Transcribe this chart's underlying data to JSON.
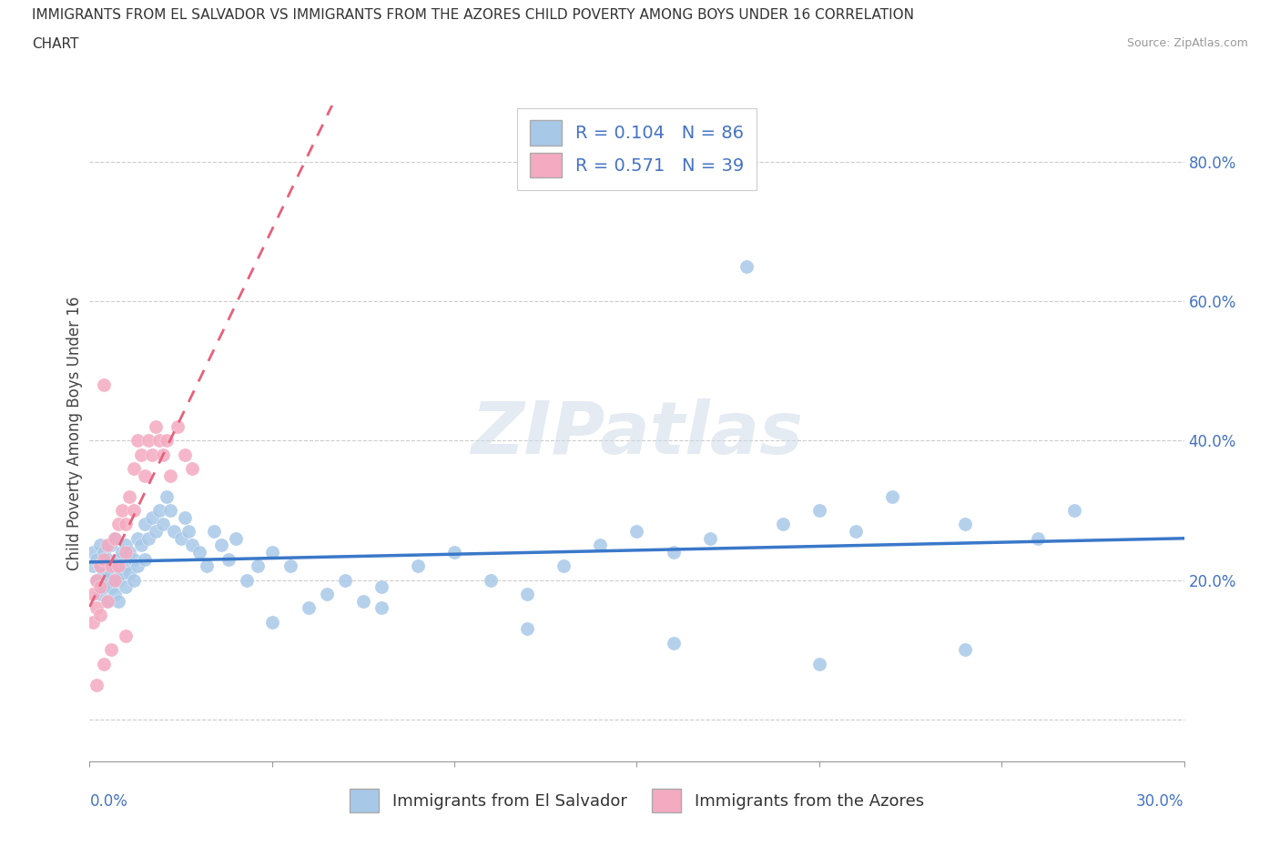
{
  "title_line1": "IMMIGRANTS FROM EL SALVADOR VS IMMIGRANTS FROM THE AZORES CHILD POVERTY AMONG BOYS UNDER 16 CORRELATION",
  "title_line2": "CHART",
  "source": "Source: ZipAtlas.com",
  "ylabel": "Child Poverty Among Boys Under 16",
  "y_ticks": [
    0.0,
    0.2,
    0.4,
    0.6,
    0.8
  ],
  "y_tick_labels": [
    "",
    "20.0%",
    "40.0%",
    "60.0%",
    "80.0%"
  ],
  "xlim": [
    0.0,
    0.3
  ],
  "ylim": [
    -0.06,
    0.88
  ],
  "watermark_text": "ZIPatlas",
  "legend_label_1": "R = 0.104   N = 86",
  "legend_label_2": "R = 0.571   N = 39",
  "legend_label_scatter_1": "Immigrants from El Salvador",
  "legend_label_scatter_2": "Immigrants from the Azores",
  "color_salvador": "#a8c8e8",
  "color_azores": "#f4aac0",
  "color_trend_salvador": "#3a78c9",
  "color_trend_azores": "#e8607a",
  "color_axis_text": "#4472c4",
  "background_color": "#ffffff",
  "el_salvador_x": [
    0.001,
    0.001,
    0.002,
    0.002,
    0.003,
    0.003,
    0.003,
    0.004,
    0.004,
    0.004,
    0.005,
    0.005,
    0.005,
    0.006,
    0.006,
    0.006,
    0.007,
    0.007,
    0.007,
    0.008,
    0.008,
    0.008,
    0.009,
    0.009,
    0.01,
    0.01,
    0.01,
    0.011,
    0.011,
    0.012,
    0.012,
    0.013,
    0.013,
    0.014,
    0.015,
    0.015,
    0.016,
    0.017,
    0.018,
    0.019,
    0.02,
    0.021,
    0.022,
    0.023,
    0.025,
    0.026,
    0.027,
    0.028,
    0.03,
    0.032,
    0.034,
    0.036,
    0.038,
    0.04,
    0.043,
    0.046,
    0.05,
    0.055,
    0.06,
    0.065,
    0.07,
    0.075,
    0.08,
    0.09,
    0.1,
    0.11,
    0.12,
    0.13,
    0.14,
    0.15,
    0.16,
    0.17,
    0.18,
    0.19,
    0.2,
    0.21,
    0.22,
    0.24,
    0.26,
    0.27,
    0.05,
    0.08,
    0.12,
    0.16,
    0.2,
    0.24
  ],
  "el_salvador_y": [
    0.22,
    0.24,
    0.2,
    0.23,
    0.18,
    0.22,
    0.25,
    0.19,
    0.21,
    0.24,
    0.2,
    0.23,
    0.17,
    0.21,
    0.25,
    0.19,
    0.22,
    0.18,
    0.26,
    0.2,
    0.23,
    0.17,
    0.21,
    0.24,
    0.22,
    0.19,
    0.25,
    0.21,
    0.24,
    0.2,
    0.23,
    0.26,
    0.22,
    0.25,
    0.23,
    0.28,
    0.26,
    0.29,
    0.27,
    0.3,
    0.28,
    0.32,
    0.3,
    0.27,
    0.26,
    0.29,
    0.27,
    0.25,
    0.24,
    0.22,
    0.27,
    0.25,
    0.23,
    0.26,
    0.2,
    0.22,
    0.24,
    0.22,
    0.16,
    0.18,
    0.2,
    0.17,
    0.19,
    0.22,
    0.24,
    0.2,
    0.18,
    0.22,
    0.25,
    0.27,
    0.24,
    0.26,
    0.65,
    0.28,
    0.3,
    0.27,
    0.32,
    0.28,
    0.26,
    0.3,
    0.14,
    0.16,
    0.13,
    0.11,
    0.08,
    0.1
  ],
  "azores_x": [
    0.001,
    0.001,
    0.002,
    0.002,
    0.003,
    0.003,
    0.003,
    0.004,
    0.004,
    0.005,
    0.005,
    0.006,
    0.006,
    0.007,
    0.007,
    0.008,
    0.008,
    0.009,
    0.01,
    0.01,
    0.011,
    0.012,
    0.012,
    0.013,
    0.014,
    0.015,
    0.016,
    0.017,
    0.018,
    0.019,
    0.02,
    0.021,
    0.022,
    0.024,
    0.026,
    0.028,
    0.002,
    0.004,
    0.01
  ],
  "azores_y": [
    0.14,
    0.18,
    0.16,
    0.2,
    0.22,
    0.15,
    0.19,
    0.48,
    0.23,
    0.17,
    0.25,
    0.1,
    0.22,
    0.26,
    0.2,
    0.28,
    0.22,
    0.3,
    0.24,
    0.28,
    0.32,
    0.36,
    0.3,
    0.4,
    0.38,
    0.35,
    0.4,
    0.38,
    0.42,
    0.4,
    0.38,
    0.4,
    0.35,
    0.42,
    0.38,
    0.36,
    0.05,
    0.08,
    0.12
  ]
}
